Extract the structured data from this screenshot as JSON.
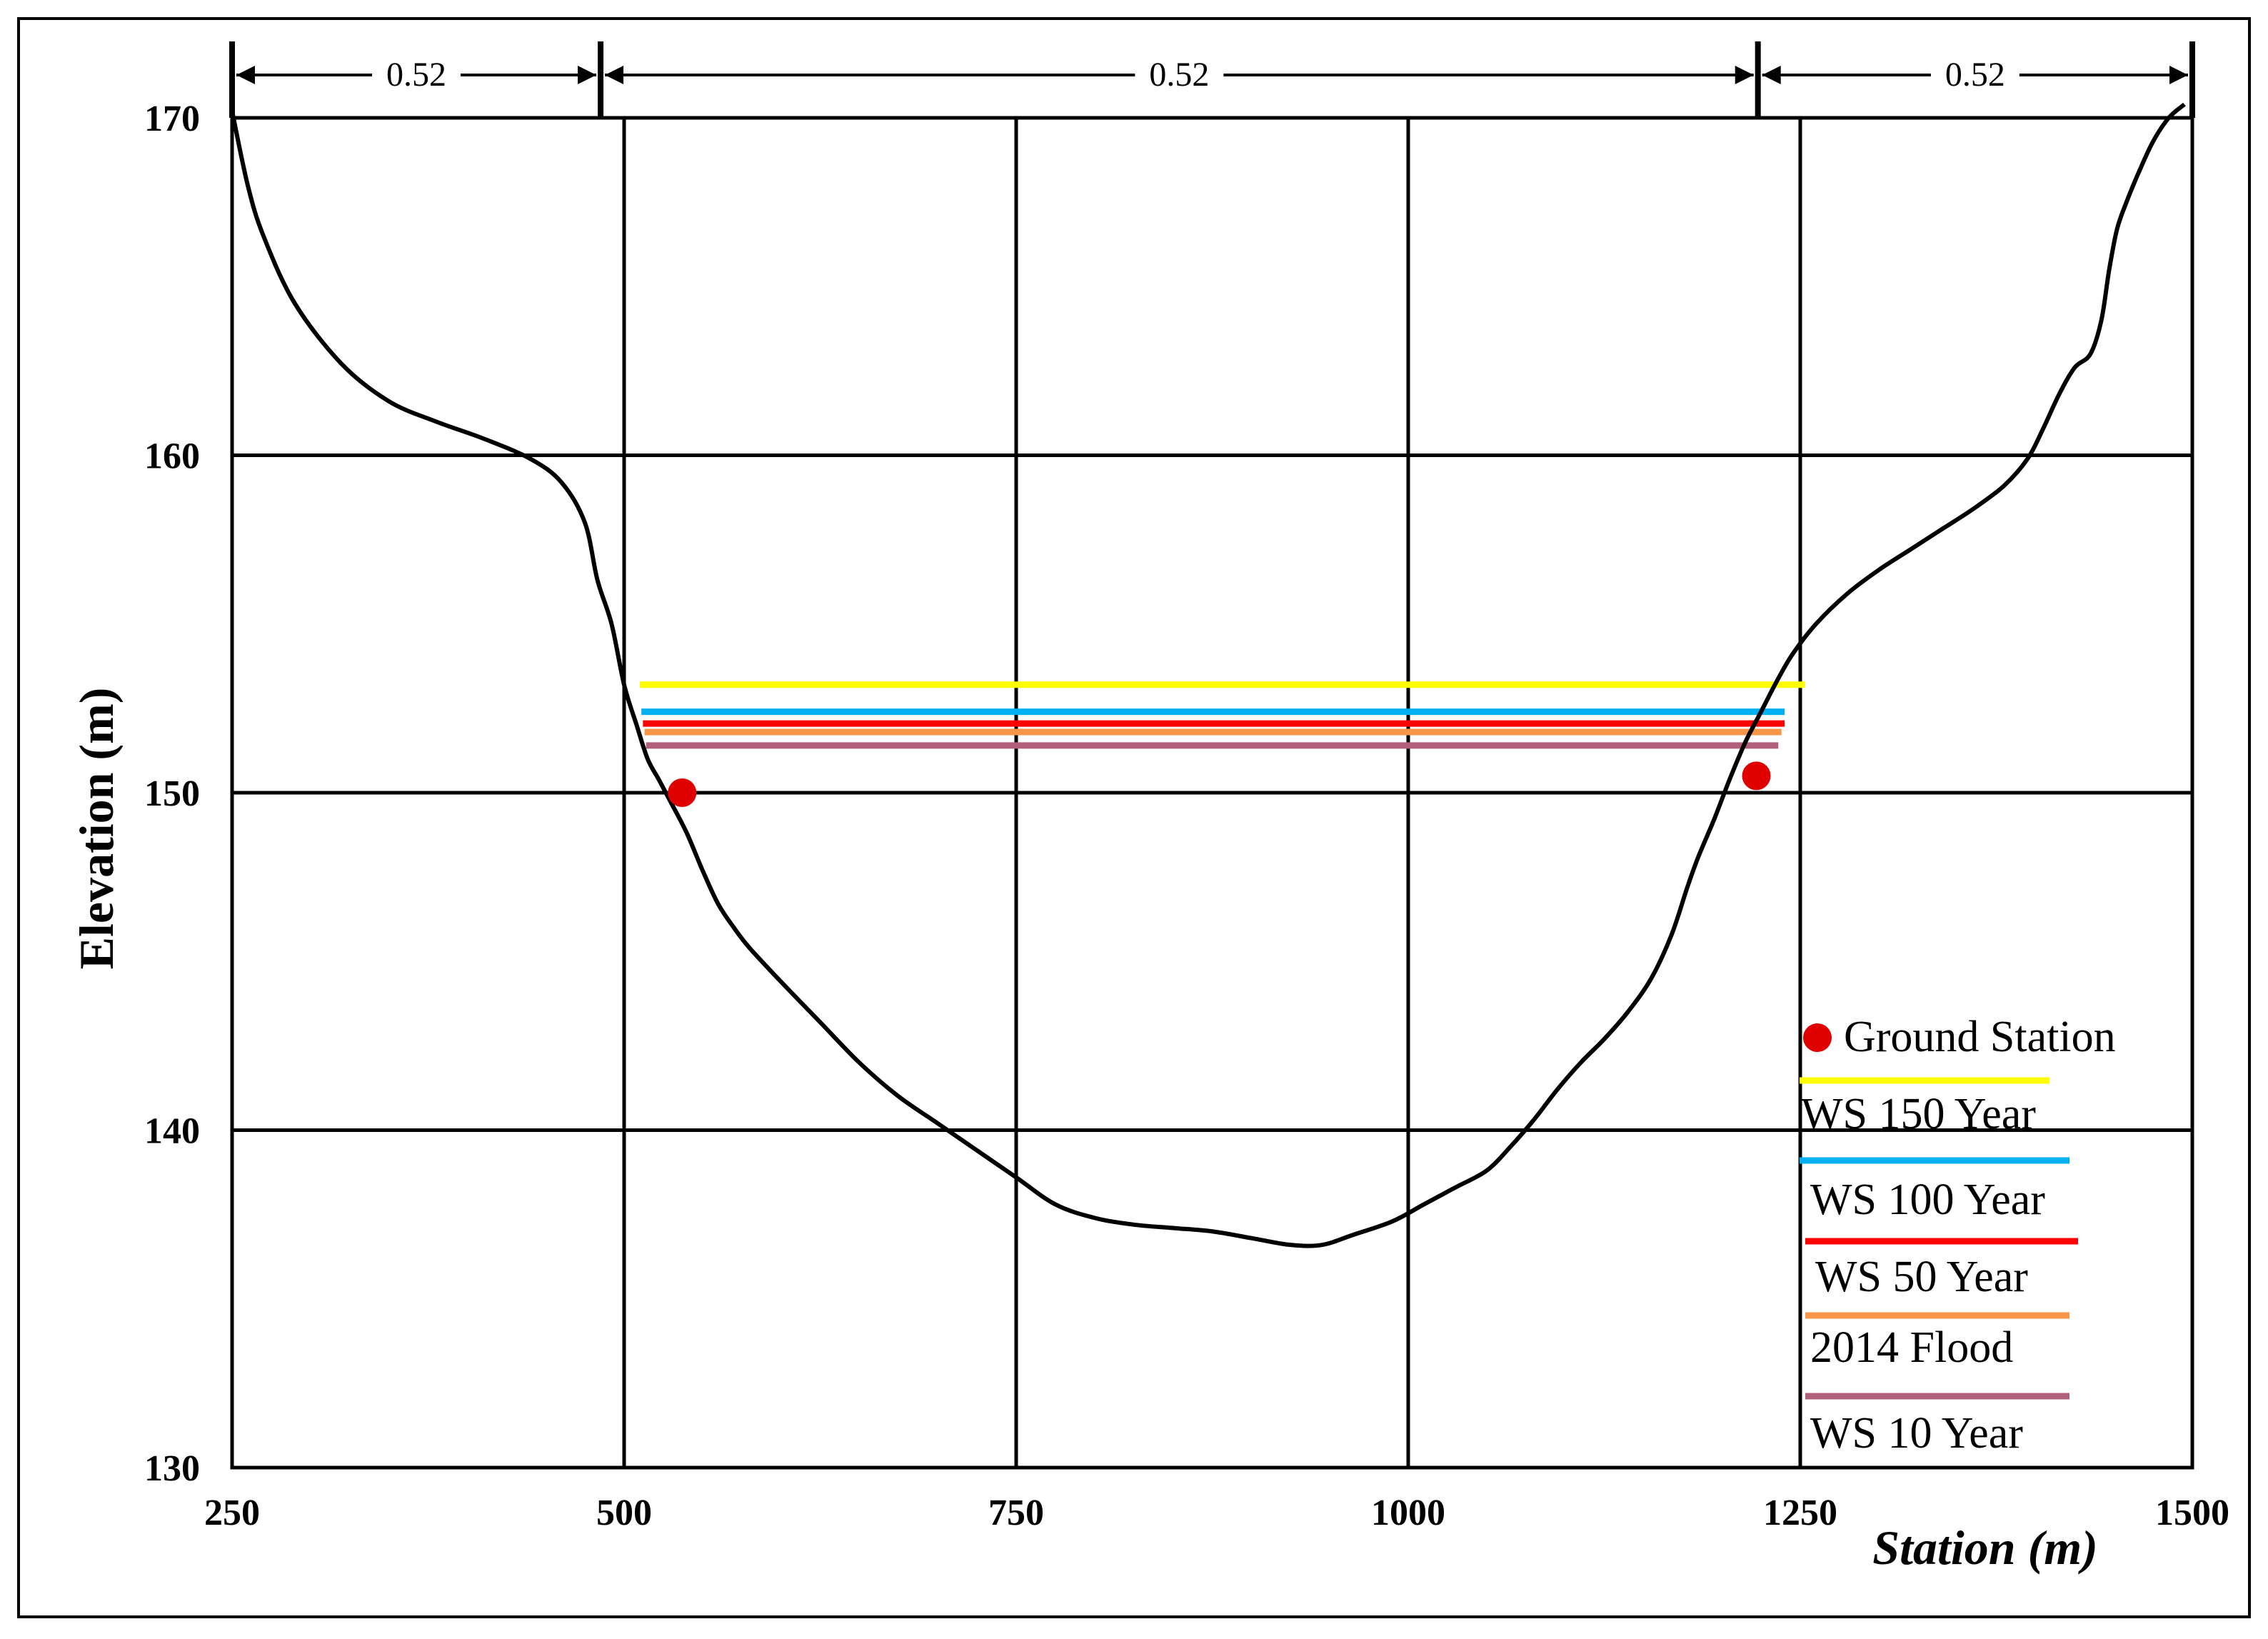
{
  "chart_data": {
    "type": "line",
    "title": "",
    "xlabel": "Station (m)",
    "ylabel": "Elevation (m)",
    "xlim": [
      250,
      1500
    ],
    "ylim": [
      130,
      170
    ],
    "x_ticks": [
      250,
      500,
      750,
      1000,
      1250,
      1500
    ],
    "y_ticks": [
      130,
      140,
      150,
      160,
      170
    ],
    "grid": true,
    "legend_position": "bottom-right",
    "manning_segments": [
      {
        "from": 250,
        "to": 485,
        "value": "0.52"
      },
      {
        "from": 485,
        "to": 1223,
        "value": "0.52"
      },
      {
        "from": 1223,
        "to": 1500,
        "value": "0.52"
      }
    ],
    "ground_profile": {
      "color": "#000000",
      "x": [
        250,
        260,
        270,
        290,
        320,
        350,
        380,
        410,
        440,
        460,
        475,
        483,
        492,
        500,
        508,
        515,
        522,
        530,
        540,
        550,
        560,
        570,
        580,
        600,
        625,
        650,
        675,
        700,
        725,
        750,
        775,
        800,
        825,
        850,
        875,
        900,
        925,
        945,
        965,
        990,
        1010,
        1030,
        1050,
        1065,
        1080,
        1095,
        1110,
        1125,
        1140,
        1155,
        1168,
        1178,
        1185,
        1195,
        1205,
        1215,
        1225,
        1235,
        1245,
        1260,
        1280,
        1300,
        1320,
        1340,
        1360,
        1380,
        1395,
        1405,
        1415,
        1425,
        1435,
        1442,
        1447,
        1452,
        1458,
        1466,
        1475,
        1485,
        1495
      ],
      "y": [
        170.2,
        168,
        166.5,
        164.5,
        162.7,
        161.6,
        161.0,
        160.5,
        159.9,
        159.2,
        158.0,
        156.3,
        155.0,
        153.2,
        152.0,
        151.0,
        150.4,
        149.7,
        148.8,
        147.7,
        146.7,
        146.0,
        145.4,
        144.4,
        143.2,
        142.0,
        141.0,
        140.2,
        139.4,
        138.6,
        137.8,
        137.4,
        137.2,
        137.1,
        137.0,
        136.8,
        136.6,
        136.6,
        136.9,
        137.3,
        137.8,
        138.3,
        138.8,
        139.5,
        140.3,
        141.2,
        142.0,
        142.7,
        143.5,
        144.5,
        145.8,
        147.2,
        148.1,
        149.2,
        150.4,
        151.5,
        152.4,
        153.3,
        154.1,
        155.0,
        155.9,
        156.6,
        157.2,
        157.8,
        158.4,
        159.1,
        159.9,
        160.8,
        161.8,
        162.6,
        163.0,
        164.0,
        165.5,
        166.7,
        167.5,
        168.4,
        169.3,
        170.0,
        170.4
      ]
    },
    "ground_stations": {
      "name": "Ground Station",
      "color": "#e00000",
      "x": [
        537,
        1222
      ],
      "y": [
        150.0,
        150.5
      ]
    },
    "series": [
      {
        "name": "WS 150 Year",
        "color": "#ffff00",
        "x": [
          510,
          1253
        ],
        "y": [
          153.2,
          153.2
        ]
      },
      {
        "name": "WS 100 Year",
        "color": "#00b0f0",
        "x": [
          511,
          1240
        ],
        "y": [
          152.4,
          152.4
        ]
      },
      {
        "name": "WS 50 Year",
        "color": "#ff0000",
        "x": [
          512,
          1240
        ],
        "y": [
          152.05,
          152.05
        ]
      },
      {
        "name": "2014 Flood",
        "color": "#f79646",
        "x": [
          513,
          1238
        ],
        "y": [
          151.8,
          151.8
        ]
      },
      {
        "name": "WS 10 Year",
        "color": "#b0607a",
        "x": [
          514,
          1236
        ],
        "y": [
          151.4,
          151.4
        ]
      }
    ]
  }
}
